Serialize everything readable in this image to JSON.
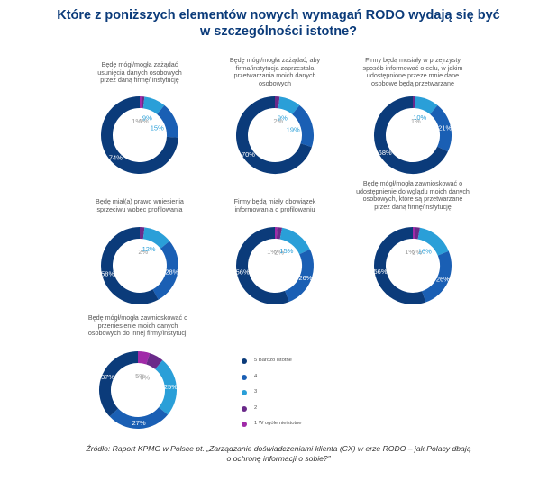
{
  "title": {
    "line1": "Które z poniższych elementów nowych wymagań RODO wydają się być",
    "line2": "w szczególności istotne?"
  },
  "legend": [
    {
      "label": "5 Bardzo istotne",
      "color": "#0b3b7a"
    },
    {
      "label": "4",
      "color": "#1a5fb4"
    },
    {
      "label": "3",
      "color": "#2a9fd8"
    },
    {
      "label": "2",
      "color": "#6a2a8a"
    },
    {
      "label": "1 W ogóle nieistotne",
      "color": "#a02aa8"
    }
  ],
  "colors": {
    "s5": "#0b3b7a",
    "s4": "#1a5fb4",
    "s3": "#2a9fd8",
    "s2": "#6a2a8a",
    "s1": "#a02aa8"
  },
  "chart_data": [
    {
      "type": "pie",
      "question": [
        "Będę mógł/mogła zażądać",
        "usunięcia danych osobowych",
        "przez daną firmę/ instytucję"
      ],
      "series": [
        {
          "name": "5 Bardzo istotne",
          "value": 74
        },
        {
          "name": "4",
          "value": 15
        },
        {
          "name": "3",
          "value": 9
        },
        {
          "name": "2",
          "value": 1
        },
        {
          "name": "1 W ogóle nieistotne",
          "value": 1
        }
      ]
    },
    {
      "type": "pie",
      "question": [
        "Będę mógł/mogła zażądać, aby",
        "firma/instytucja zaprzestała",
        "przetwarzania moich danych",
        "osobowych"
      ],
      "series": [
        {
          "name": "5 Bardzo istotne",
          "value": 70
        },
        {
          "name": "4",
          "value": 19
        },
        {
          "name": "3",
          "value": 9
        },
        {
          "name": "2",
          "value": 2
        },
        {
          "name": "1 W ogóle nieistotne",
          "value": 0
        }
      ]
    },
    {
      "type": "pie",
      "question": [
        "Firmy będą musiały w przejrzysty",
        "sposób informować o celu, w jakim",
        "udostępnione przeze mnie dane",
        "osobowe będą przetwarzane"
      ],
      "series": [
        {
          "name": "5 Bardzo istotne",
          "value": 68
        },
        {
          "name": "4",
          "value": 21
        },
        {
          "name": "3",
          "value": 10
        },
        {
          "name": "2",
          "value": 1
        },
        {
          "name": "1 W ogóle nieistotne",
          "value": 0
        }
      ]
    },
    {
      "type": "pie",
      "question": [
        "Będę miał(a) prawo wniesienia",
        "sprzeciwu wobec profilowania"
      ],
      "series": [
        {
          "name": "5 Bardzo istotne",
          "value": 58
        },
        {
          "name": "4",
          "value": 28
        },
        {
          "name": "3",
          "value": 12
        },
        {
          "name": "2",
          "value": 2
        },
        {
          "name": "1 W ogóle nieistotne",
          "value": 0
        }
      ]
    },
    {
      "type": "pie",
      "question": [
        "Firmy będą miały obowiązek",
        "informowania o profilowaniu"
      ],
      "series": [
        {
          "name": "5 Bardzo istotne",
          "value": 56
        },
        {
          "name": "4",
          "value": 26
        },
        {
          "name": "3",
          "value": 15
        },
        {
          "name": "2",
          "value": 2
        },
        {
          "name": "1 W ogóle nieistotne",
          "value": 1
        }
      ]
    },
    {
      "type": "pie",
      "question": [
        "Będę mógł/mogła zawnioskować o",
        "udostępnienie do wglądu moich danych",
        "osobowych, które są przetwarzane",
        "przez daną firmę/instytucję"
      ],
      "series": [
        {
          "name": "5 Bardzo istotne",
          "value": 56
        },
        {
          "name": "4",
          "value": 26
        },
        {
          "name": "3",
          "value": 16
        },
        {
          "name": "2",
          "value": 2
        },
        {
          "name": "1 W ogóle nieistotne",
          "value": 1
        }
      ]
    },
    {
      "type": "pie",
      "question": [
        "Będę mógł/mogła zawnioskować o",
        "przeniesienie moich danych",
        "osobowych do innej firmy/instytucji"
      ],
      "series": [
        {
          "name": "5 Bardzo istotne",
          "value": 37
        },
        {
          "name": "4",
          "value": 27
        },
        {
          "name": "3",
          "value": 25
        },
        {
          "name": "2",
          "value": 6
        },
        {
          "name": "1 W ogóle nieistotne",
          "value": 5
        }
      ]
    }
  ],
  "source": {
    "line1": "Źródło: Raport KPMG w Polsce pt. „Zarządzanie doświadczeniami klienta (CX) w erze RODO – jak Polacy dbają",
    "line2": "o ochronę informacji o sobie?”"
  }
}
